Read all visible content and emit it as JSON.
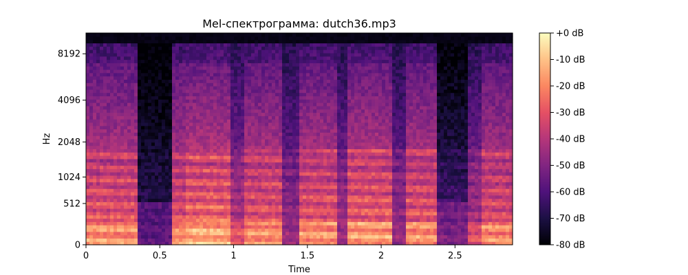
{
  "chart_data": {
    "type": "heatmap",
    "title": "Mel-спектрограмма: dutch36.mp3",
    "xlabel": "Time",
    "ylabel": "Hz",
    "xlim": [
      0,
      2.89
    ],
    "x_ticks": [
      {
        "value": 0,
        "label": "0"
      },
      {
        "value": 0.5,
        "label": "0.5"
      },
      {
        "value": 1,
        "label": "1"
      },
      {
        "value": 1.5,
        "label": "1.5"
      },
      {
        "value": 2,
        "label": "2"
      },
      {
        "value": 2.5,
        "label": "2.5"
      }
    ],
    "y_scale": "mel",
    "y_ticks": [
      {
        "value": 0,
        "label": "0"
      },
      {
        "value": 512,
        "label": "512"
      },
      {
        "value": 1024,
        "label": "1024"
      },
      {
        "value": 2048,
        "label": "2048"
      },
      {
        "value": 4096,
        "label": "4096"
      },
      {
        "value": 8192,
        "label": "8192"
      }
    ],
    "colorbar": {
      "colormap": "magma",
      "range": [
        -80,
        0
      ],
      "ticks": [
        {
          "value": 0,
          "label": "+0 dB"
        },
        {
          "value": -10,
          "label": "-10 dB"
        },
        {
          "value": -20,
          "label": "-20 dB"
        },
        {
          "value": -30,
          "label": "-30 dB"
        },
        {
          "value": -40,
          "label": "-40 dB"
        },
        {
          "value": -50,
          "label": "-50 dB"
        },
        {
          "value": -60,
          "label": "-60 dB"
        },
        {
          "value": -70,
          "label": "-70 dB"
        },
        {
          "value": -80,
          "label": "-80 dB"
        }
      ]
    },
    "grid": false,
    "segments": [
      [
        0.0,
        0.35,
        0.9
      ],
      [
        0.35,
        0.58,
        0.15
      ],
      [
        0.58,
        0.68,
        0.85
      ],
      [
        0.68,
        0.98,
        1.0
      ],
      [
        0.98,
        1.08,
        0.6
      ],
      [
        1.08,
        1.33,
        0.9
      ],
      [
        1.33,
        1.45,
        0.45
      ],
      [
        1.45,
        1.7,
        0.9
      ],
      [
        1.7,
        1.78,
        0.5
      ],
      [
        1.78,
        2.08,
        0.95
      ],
      [
        2.08,
        2.16,
        0.45
      ],
      [
        2.16,
        2.38,
        0.9
      ],
      [
        2.38,
        2.58,
        0.3
      ],
      [
        2.58,
        2.68,
        0.55
      ],
      [
        2.68,
        2.89,
        0.85
      ]
    ]
  }
}
